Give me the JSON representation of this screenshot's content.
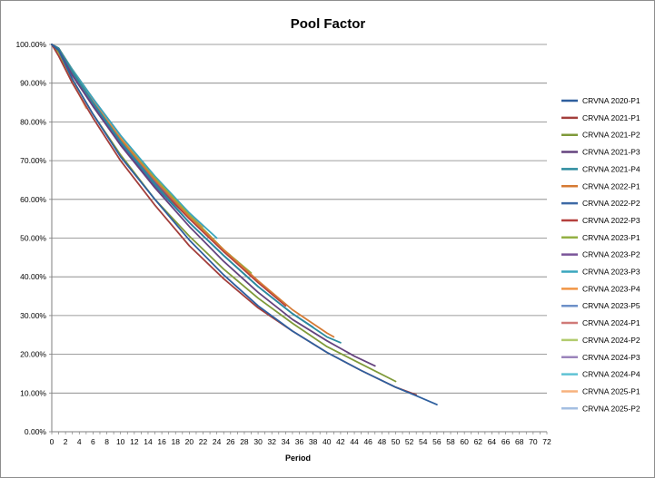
{
  "chart_data": {
    "type": "line",
    "title": "Pool Factor",
    "xlabel": "Period",
    "ylabel": "",
    "xlim": [
      0,
      72
    ],
    "ylim": [
      0,
      100
    ],
    "x_ticks": [
      0,
      2,
      4,
      6,
      8,
      10,
      12,
      14,
      16,
      18,
      20,
      22,
      24,
      26,
      28,
      30,
      32,
      34,
      36,
      38,
      40,
      42,
      44,
      46,
      48,
      50,
      52,
      54,
      56,
      58,
      60,
      62,
      64,
      66,
      68,
      70,
      72
    ],
    "y_ticks": [
      "0.00%",
      "10.00%",
      "20.00%",
      "30.00%",
      "40.00%",
      "50.00%",
      "60.00%",
      "70.00%",
      "80.00%",
      "90.00%",
      "100.00%"
    ],
    "grid": "horizontal",
    "legend_position": "right",
    "series": [
      {
        "name": "CRVNA 2020-P1",
        "color": "#2e5f9e",
        "x": [
          0,
          1,
          3,
          6,
          10,
          15,
          20,
          25,
          30,
          35,
          40,
          45,
          50,
          53,
          56
        ],
        "y": [
          100,
          98.5,
          91,
          82,
          71,
          60,
          49.5,
          40.5,
          32.5,
          26,
          20.5,
          15.8,
          11.5,
          9.3,
          7
        ]
      },
      {
        "name": "CRVNA 2021-P1",
        "color": "#a33f3c",
        "x": [
          0,
          1,
          3,
          6,
          10,
          15,
          20,
          25,
          30,
          35,
          40,
          45,
          50,
          53
        ],
        "y": [
          100,
          97,
          90,
          81,
          70,
          58.5,
          48,
          39.5,
          32,
          26,
          20.5,
          15.8,
          11.5,
          9.5
        ]
      },
      {
        "name": "CRVNA 2021-P2",
        "color": "#7f9a3a",
        "x": [
          0,
          1,
          3,
          6,
          10,
          15,
          20,
          25,
          30,
          35,
          40,
          45,
          50
        ],
        "y": [
          100,
          98,
          91,
          82,
          71.5,
          60,
          50.5,
          42,
          34.5,
          28,
          22,
          17.5,
          13
        ]
      },
      {
        "name": "CRVNA 2021-P3",
        "color": "#65437e",
        "x": [
          0,
          1,
          3,
          6,
          10,
          15,
          20,
          25,
          30,
          35,
          40,
          44,
          47
        ],
        "y": [
          100,
          98.5,
          92,
          84,
          74,
          63,
          53,
          44,
          36,
          29,
          23.5,
          19.5,
          17
        ]
      },
      {
        "name": "CRVNA 2021-P4",
        "color": "#2b8b9e",
        "x": [
          0,
          1,
          3,
          6,
          10,
          15,
          20,
          25,
          30,
          35,
          40,
          42
        ],
        "y": [
          100,
          99,
          93,
          85,
          75,
          64,
          54,
          45.5,
          37.5,
          30.5,
          24.5,
          23
        ]
      },
      {
        "name": "CRVNA 2022-P1",
        "color": "#d57a34",
        "x": [
          0,
          1,
          3,
          6,
          10,
          15,
          20,
          25,
          30,
          35,
          40,
          41
        ],
        "y": [
          100,
          99,
          93,
          85,
          75.5,
          65,
          55.5,
          47,
          39,
          31.5,
          25.5,
          24.5
        ]
      },
      {
        "name": "CRVNA 2022-P2",
        "color": "#3e6aa6",
        "x": [
          0,
          1,
          3,
          6,
          10,
          15,
          20,
          25,
          30,
          35,
          38
        ],
        "y": [
          100,
          99,
          92.5,
          84.5,
          74.5,
          63.5,
          54,
          45.5,
          37.5,
          30.5,
          27
        ]
      },
      {
        "name": "CRVNA 2022-P3",
        "color": "#b5403d",
        "x": [
          0,
          1,
          3,
          6,
          10,
          15,
          20,
          25,
          30,
          34
        ],
        "y": [
          100,
          99,
          92.5,
          84.5,
          74.5,
          64,
          55,
          46.5,
          38.5,
          32.5
        ]
      },
      {
        "name": "CRVNA 2023-P1",
        "color": "#93b043",
        "x": [
          0,
          1,
          3,
          6,
          10,
          15,
          20,
          25,
          29
        ],
        "y": [
          100,
          99,
          93,
          85,
          75.5,
          65.5,
          56,
          47,
          41
        ]
      },
      {
        "name": "CRVNA 2023-P2",
        "color": "#7a5599",
        "x": [
          0,
          1,
          3,
          6,
          10,
          15,
          20,
          25,
          27
        ],
        "y": [
          100,
          99,
          93,
          85,
          75,
          64.5,
          55,
          46.5,
          44
        ]
      },
      {
        "name": "CRVNA 2023-P3",
        "color": "#3aa6bd",
        "x": [
          0,
          1,
          3,
          6,
          10,
          15,
          20,
          24
        ],
        "y": [
          100,
          99,
          93.5,
          86,
          76.5,
          66,
          56.5,
          50
        ]
      },
      {
        "name": "CRVNA 2023-P4",
        "color": "#f09545",
        "x": [
          0,
          1,
          3,
          6,
          10,
          15,
          20,
          22
        ],
        "y": [
          100,
          99,
          93.5,
          86,
          76,
          65.5,
          56,
          53
        ]
      },
      {
        "name": "CRVNA 2023-P5",
        "color": "#6d90c8",
        "x": [
          0,
          1,
          3,
          6,
          10,
          15,
          19
        ],
        "y": [
          100,
          99,
          93.5,
          86,
          76,
          65.5,
          58
        ]
      },
      {
        "name": "CRVNA 2024-P1",
        "color": "#d07a78",
        "x": [
          0,
          1,
          3,
          6,
          10,
          15,
          17
        ],
        "y": [
          100,
          99,
          93,
          85.5,
          75.5,
          65,
          61
        ]
      },
      {
        "name": "CRVNA 2024-P2",
        "color": "#b2cc6e",
        "x": [
          0,
          1,
          3,
          6,
          10,
          14
        ],
        "y": [
          100,
          99,
          93,
          85.5,
          75.5,
          67
        ]
      },
      {
        "name": "CRVNA 2024-P3",
        "color": "#9b84bb",
        "x": [
          0,
          1,
          3,
          6,
          10,
          12
        ],
        "y": [
          100,
          99,
          93.5,
          86,
          76.5,
          72
        ]
      },
      {
        "name": "CRVNA 2024-P4",
        "color": "#5fc3d4",
        "x": [
          0,
          1,
          3,
          6,
          9
        ],
        "y": [
          100,
          99,
          93.5,
          86,
          78.5
        ]
      },
      {
        "name": "CRVNA 2025-P1",
        "color": "#f7b27d",
        "x": [
          0,
          1,
          3,
          5
        ],
        "y": [
          100,
          97.5,
          90.5,
          83.5
        ]
      },
      {
        "name": "CRVNA 2025-P2",
        "color": "#a4bfe2",
        "x": [
          0,
          1,
          2,
          3
        ],
        "y": [
          100,
          98,
          94.5,
          90.5
        ]
      }
    ]
  }
}
